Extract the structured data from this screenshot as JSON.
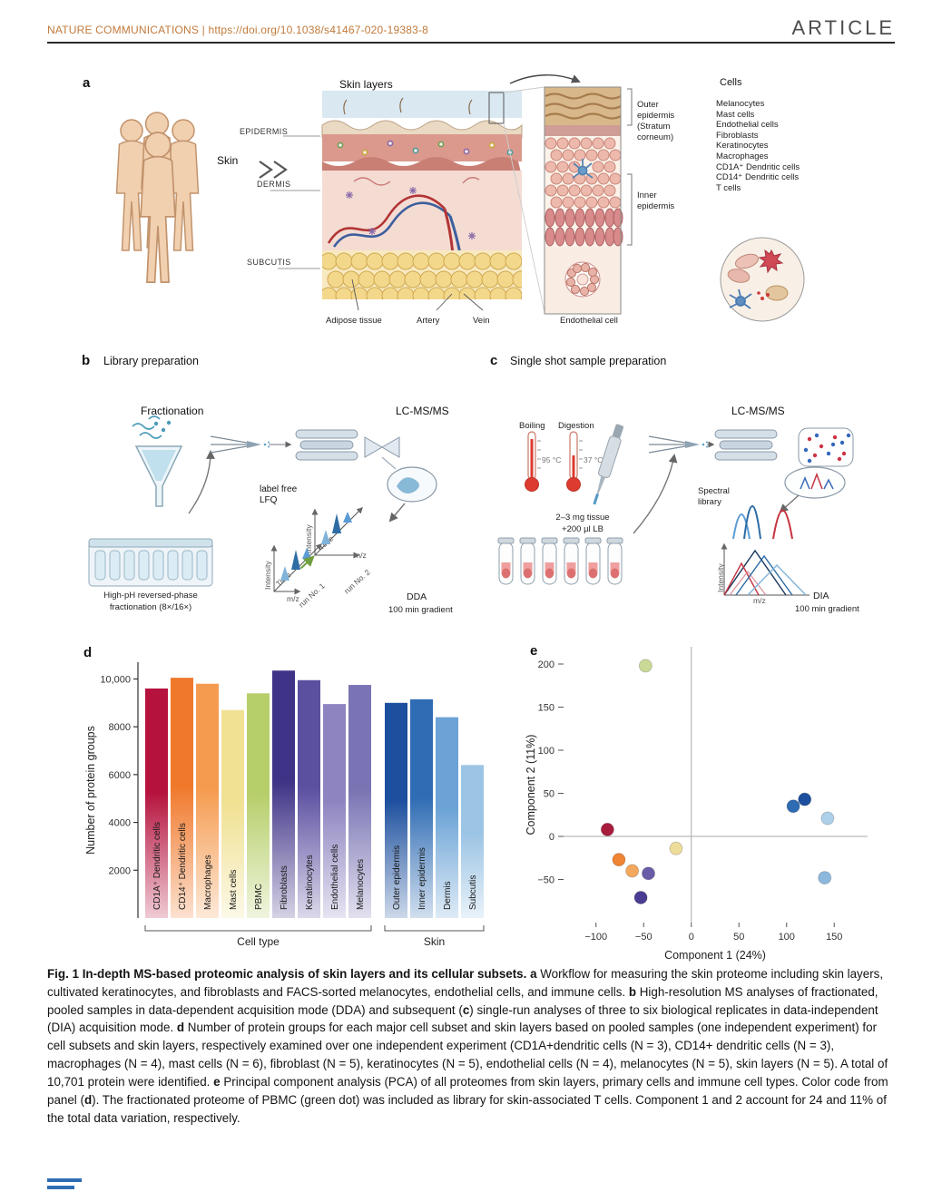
{
  "colors": {
    "header-link": "#c17a3c",
    "rule": "#2b2b2b",
    "article": "#4d4d4d",
    "footer-blue": "#2e6db4"
  },
  "header": {
    "journal": "NATURE COMMUNICATIONS | https://doi.org/10.1038/s41467-020-19383-8",
    "article": "ARTICLE"
  },
  "panel_a": {
    "label": "a",
    "title": "Skin layers",
    "skin": "Skin",
    "epidermis": "EPIDERMIS",
    "dermis": "DERMIS",
    "subcutis": "SUBCUTIS",
    "adipose": "Adipose tissue",
    "artery": "Artery",
    "vein": "Vein",
    "endothelial": "Endothelial cell",
    "outer_epidermis": "Outer epidermis (Stratum corneum)",
    "inner_epidermis": "Inner epidermis",
    "cells_title": "Cells",
    "cells": [
      "Melanocytes",
      "Mast cells",
      "Endothelial cells",
      "Fibroblasts",
      "Keratinocytes",
      "Macrophages",
      "CD1A⁺ Dendritic cells",
      "CD14⁺ Dendritic cells",
      "T cells"
    ]
  },
  "panel_b": {
    "label": "b",
    "title": "Library preparation",
    "fractionation": "Fractionation",
    "lcms": "LC-MS/MS",
    "label_free_1": "label free",
    "label_free_2": "LFQ",
    "intensity": "Intensity",
    "time": "Time",
    "mz": "m/z",
    "run1": "run No. 1",
    "run2": "run No. 2",
    "dda": "DDA",
    "gradient": "100 min gradient",
    "frac_caption_1": "High-pH reversed-phase",
    "frac_caption_2": "fractionation (8×/16×)"
  },
  "panel_c": {
    "label": "c",
    "title": "Single shot sample preparation",
    "boiling": "Boiling",
    "digestion": "Digestion",
    "temp_boiling": "95 °C",
    "temp_digestion": "37 °C",
    "tissue_1": "2–3 mg tissue",
    "tissue_2": "+200 µl LB",
    "lcms": "LC-MS/MS",
    "spectral_library": "Spectral library",
    "intensity": "Intensity",
    "mz": "m/z",
    "dia": "DIA",
    "gradient": "100 min gradient"
  },
  "panel_d": {
    "label": "d"
  },
  "panel_e": {
    "label": "e"
  },
  "chart_data": [
    {
      "type": "bar",
      "ylabel": "Number of protein groups",
      "ylim": [
        0,
        10700
      ],
      "yticks": [
        2000,
        4000,
        6000,
        8000,
        10000
      ],
      "ytick_labels": [
        "2000",
        "4000",
        "6000",
        "8000",
        "10,000"
      ],
      "groups": [
        {
          "label": "Cell type",
          "bars": [
            {
              "label": "CD1A⁺ Dendritic cells",
              "value": 9600,
              "color": "#b5123d"
            },
            {
              "label": "CD14⁺ Dendritic cells",
              "value": 10050,
              "color": "#f0782a"
            },
            {
              "label": "Macrophages",
              "value": 9800,
              "color": "#f59b50"
            },
            {
              "label": "Mast cells",
              "value": 8700,
              "color": "#f0e193"
            },
            {
              "label": "PBMC",
              "value": 9400,
              "color": "#b7cf6b"
            },
            {
              "label": "Fibroblasts",
              "value": 10350,
              "color": "#3f3387"
            },
            {
              "label": "Keratinocytes",
              "value": 9950,
              "color": "#5b4fa0"
            },
            {
              "label": "Endothelial cells",
              "value": 8950,
              "color": "#8d84c0"
            },
            {
              "label": "Melanocytes",
              "value": 9750,
              "color": "#7a74b4"
            }
          ]
        },
        {
          "label": "Skin",
          "bars": [
            {
              "label": "Outer epidermis",
              "value": 9000,
              "color": "#1c4f9e"
            },
            {
              "label": "Inner epidermis",
              "value": 9150,
              "color": "#2f6cb4"
            },
            {
              "label": "Dermis",
              "value": 8400,
              "color": "#6ba3d6"
            },
            {
              "label": "Subcutis",
              "value": 6400,
              "color": "#9cc4e4"
            }
          ]
        }
      ]
    },
    {
      "type": "scatter",
      "xlabel": "Component 1 (24%)",
      "ylabel": "Component 2 (11%)",
      "xlim": [
        -135,
        185
      ],
      "ylim": [
        -100,
        220
      ],
      "xticks": [
        -100,
        -50,
        0,
        50,
        100,
        150
      ],
      "xtick_labels": [
        "−100",
        "−50",
        "0",
        "50",
        "100",
        "150"
      ],
      "yticks": [
        -50,
        0,
        50,
        100,
        150,
        200
      ],
      "ytick_labels": [
        "−50",
        "0",
        "50",
        "100",
        "150",
        "200"
      ],
      "points": [
        {
          "x": -48,
          "y": 198,
          "color": "#c9da96"
        },
        {
          "x": -88,
          "y": 8,
          "color": "#a81c3e"
        },
        {
          "x": -76,
          "y": -27,
          "color": "#ef8432"
        },
        {
          "x": -62,
          "y": -40,
          "color": "#f4a85e"
        },
        {
          "x": -16,
          "y": -14,
          "color": "#eedc9a"
        },
        {
          "x": -45,
          "y": -43,
          "color": "#6a5ca8"
        },
        {
          "x": -53,
          "y": -71,
          "color": "#4a3c92"
        },
        {
          "x": 107,
          "y": 35,
          "color": "#2f6cb4"
        },
        {
          "x": 119,
          "y": 43,
          "color": "#1c4f9e"
        },
        {
          "x": 143,
          "y": 21,
          "color": "#aed0ea"
        },
        {
          "x": 140,
          "y": -48,
          "color": "#8cb8de"
        }
      ]
    }
  ],
  "caption": {
    "runs": [
      {
        "t": "Fig. 1 In-depth MS-based proteomic analysis of skin layers and its cellular subsets. ",
        "b": true
      },
      {
        "t": "a",
        "b": true
      },
      {
        "t": " Workflow for measuring the skin proteome including skin layers, cultivated keratinocytes, and fibroblasts and FACS-sorted melanocytes, endothelial cells, and immune cells. ",
        "b": false
      },
      {
        "t": "b",
        "b": true
      },
      {
        "t": " High-resolution MS analyses of fractionated, pooled samples in data-dependent acquisition mode (DDA) and subsequent (",
        "b": false
      },
      {
        "t": "c",
        "b": true
      },
      {
        "t": ") single-run analyses of three to six biological replicates in data-independent (DIA) acquisition mode. ",
        "b": false
      },
      {
        "t": "d",
        "b": true
      },
      {
        "t": " Number of protein groups for each major cell subset and skin layers based on pooled samples (one independent experiment) for cell subsets and skin layers, respectively examined over one independent experiment (CD1A+dendritic cells (N = 3), CD14+ dendritic cells (N = 3), macrophages (N = 4), mast cells (N = 6), fibroblast (N = 5), keratinocytes (N = 5), endothelial cells (N = 4), melanocytes (N = 5), skin layers (N = 5). A total of 10,701 protein were identified. ",
        "b": false
      },
      {
        "t": "e",
        "b": true
      },
      {
        "t": " Principal component analysis (PCA) of all proteomes from skin layers, primary cells and immune cell types. Color code from panel (",
        "b": false
      },
      {
        "t": "d",
        "b": true
      },
      {
        "t": "). The fractionated proteome of PBMC (green dot) was included as library for skin-associated T cells. Component 1 and 2 account for 24 and 11% of the total data variation, respectively.",
        "b": false
      }
    ]
  }
}
